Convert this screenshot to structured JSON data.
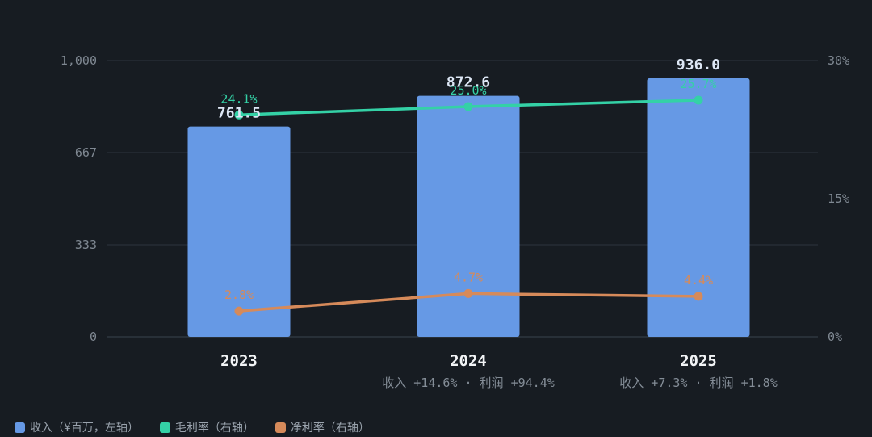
{
  "colors": {
    "background": "#171c22",
    "revenue": "#6699e5",
    "gross_margin": "#34d1a6",
    "net_margin": "#d68a5a",
    "grid": "#2c343d",
    "axis_text": "#7f8892",
    "value_label": "#dde7f5",
    "category_label": "#f2f4f6",
    "growth_text": "#848d97"
  },
  "legend": [
    {
      "label": "收入（¥百万，左轴）",
      "color": "#6699e5",
      "icon": "square"
    },
    {
      "label": "毛利率（右轴）",
      "color": "#34d1a6",
      "icon": "square"
    },
    {
      "label": "净利率（右轴）",
      "color": "#d68a5a",
      "icon": "square"
    }
  ],
  "chart_data": {
    "type": "bar",
    "categories": [
      "2023",
      "2024",
      "2025"
    ],
    "series": [
      {
        "name": "收入（¥百万，左轴）",
        "type": "bar",
        "axis": "left",
        "values": [
          761.5,
          872.6,
          936.0
        ],
        "labels": [
          "761.5",
          "872.6",
          "936.0"
        ]
      },
      {
        "name": "毛利率（右轴）",
        "type": "line",
        "axis": "right",
        "values": [
          24.1,
          25.0,
          25.7
        ],
        "labels": [
          "24.1%",
          "25.0%",
          "25.7%"
        ]
      },
      {
        "name": "净利率（右轴）",
        "type": "line",
        "axis": "right",
        "values": [
          2.8,
          4.7,
          4.4
        ],
        "labels": [
          "2.8%",
          "4.7%",
          "4.4%"
        ]
      }
    ],
    "growth_notes": [
      "",
      "收入 +14.6% · 利润 +94.4%",
      "收入 +7.3% · 利润 +1.8%"
    ],
    "ylim_left": [
      0,
      1000
    ],
    "yticks_left": [
      "0",
      "333",
      "667",
      "1,000"
    ],
    "ytick_values_left": [
      0,
      333.3,
      666.7,
      1000
    ],
    "ylim_right": [
      0,
      30
    ],
    "yticks_right": [
      "0%",
      "15%",
      "30%"
    ],
    "ytick_values_right": [
      0,
      15,
      30
    ],
    "grid": true,
    "legend_position": "bottom-left"
  }
}
